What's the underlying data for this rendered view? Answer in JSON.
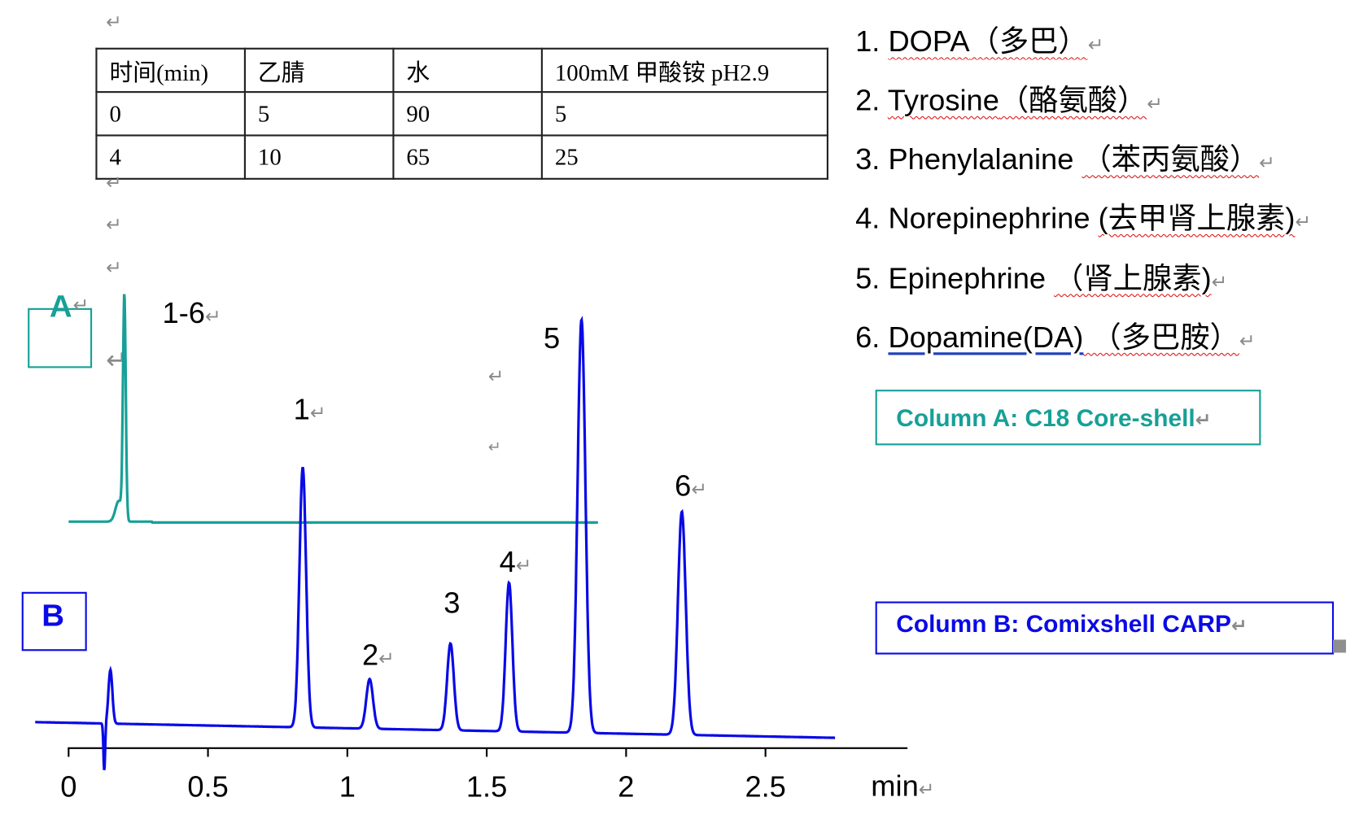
{
  "paragraph_mark": "↵",
  "gradient_table": {
    "headers": [
      "时间(min)",
      "乙腈",
      "水",
      "100mM 甲酸铵 pH2.9"
    ],
    "rows": [
      [
        "0",
        "5",
        "90",
        "5"
      ],
      [
        "4",
        "10",
        "65",
        "25"
      ]
    ]
  },
  "legend": [
    {
      "num": "1. ",
      "en": "DOPA",
      "cn": "（多巴）"
    },
    {
      "num": "2. ",
      "en": "Tyrosine",
      "cn": "（酪氨酸）"
    },
    {
      "num": "3. ",
      "en": "Phenylalanine ",
      "cn": "（苯丙氨酸）"
    },
    {
      "num": "4. ",
      "en": "Norepinephrine ",
      "cn": "(去甲肾上腺素)"
    },
    {
      "num": "5. ",
      "en": "Epinephrine ",
      "cn": "（肾上腺素)"
    },
    {
      "num": "6. ",
      "en": "Dopamine(DA)",
      "cn": " （多巴胺）"
    }
  ],
  "column_a_label": "Column A: C18 Core-shell",
  "column_b_label": "Column B: Comixshell CARP",
  "trace_a_tag": "A",
  "trace_b_tag": "B",
  "colors": {
    "column_a": "#17a097",
    "column_b": "#0a0ae6",
    "paragraph_mark": "#8a8a8a"
  },
  "chart_data": {
    "type": "line",
    "xlabel": "min",
    "ylabel": "",
    "xlim": [
      -0.12,
      3.0
    ],
    "x_ticks": [
      "0",
      "0.5",
      "1",
      "1.5",
      "2",
      "2.5"
    ],
    "grid": false,
    "series": [
      {
        "name": "A",
        "x_range": [
          0,
          1.9
        ],
        "peaks": [
          {
            "label": "1-6",
            "time": 0.2,
            "height": 54
          },
          {
            "label": "",
            "time": 0.18,
            "height": 5
          }
        ]
      },
      {
        "name": "B",
        "x_range": [
          -0.12,
          2.75
        ],
        "peaks": [
          {
            "label": "",
            "time": 0.15,
            "height": 13
          },
          {
            "label": "1",
            "time": 0.84,
            "height": 63
          },
          {
            "label": "2",
            "time": 1.08,
            "height": 12
          },
          {
            "label": "3",
            "time": 1.37,
            "height": 21
          },
          {
            "label": "4",
            "time": 1.58,
            "height": 36
          },
          {
            "label": "5",
            "time": 1.84,
            "height": 100
          },
          {
            "label": "6",
            "time": 2.2,
            "height": 54
          }
        ]
      }
    ]
  }
}
